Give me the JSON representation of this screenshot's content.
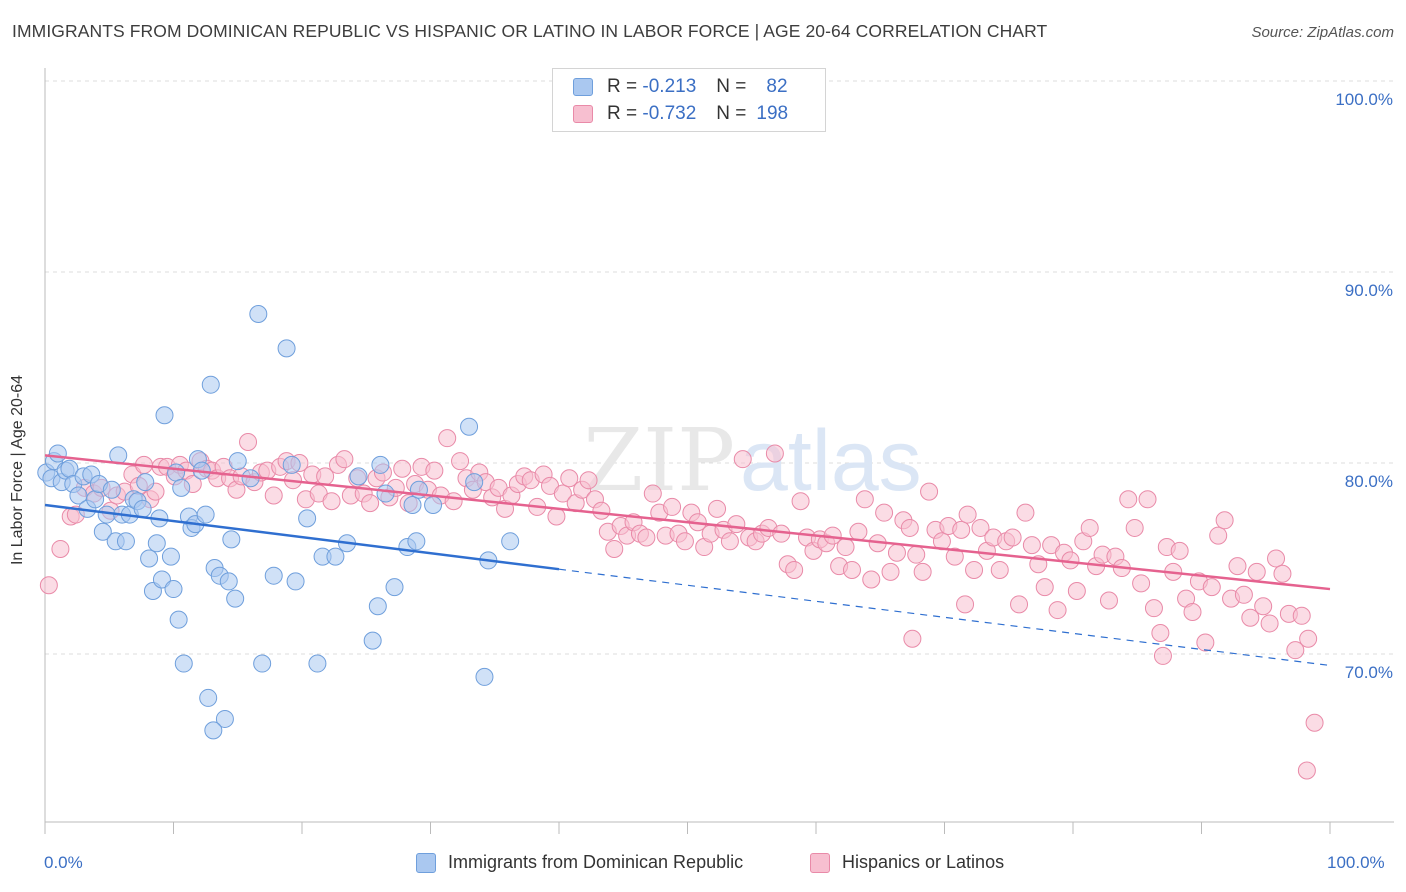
{
  "header": {
    "title": "IMMIGRANTS FROM DOMINICAN REPUBLIC VS HISPANIC OR LATINO IN LABOR FORCE | AGE 20-64 CORRELATION CHART",
    "source": "Source: ZipAtlas.com"
  },
  "watermark": "ZIPatlas",
  "legend": {
    "rows": [
      {
        "r_label": "R =",
        "r_value": "-0.213",
        "n_label": "N =",
        "n_value": "82"
      },
      {
        "r_label": "R =",
        "r_value": "-0.732",
        "n_label": "N =",
        "n_value": "198"
      }
    ]
  },
  "bottom_legend": {
    "series1": "Immigrants from Dominican Republic",
    "series2": "Hispanics or Latinos"
  },
  "axes": {
    "ylabel": "In Labor Force | Age 20-64",
    "x_min_label": "0.0%",
    "x_max_label": "100.0%",
    "y_tick_labels": [
      "100.0%",
      "90.0%",
      "80.0%",
      "70.0%"
    ]
  },
  "colors": {
    "blue_fill": "#aac8f0",
    "blue_stroke": "#6f9fdc",
    "blue_line": "#2f6fd0",
    "pink_fill": "#f7bfd0",
    "pink_stroke": "#e98aa8",
    "pink_line": "#e5628f",
    "tick_text": "#3b6fc4"
  },
  "chart_data": {
    "type": "scatter",
    "title": "IMMIGRANTS FROM DOMINICAN REPUBLIC VS HISPANIC OR LATINO IN LABOR FORCE | AGE 20-64 CORRELATION CHART",
    "xlabel": "",
    "ylabel": "In Labor Force | Age 20-64",
    "xlim": [
      0,
      100
    ],
    "ylim": [
      61,
      101.5
    ],
    "y_ticks": [
      70,
      80,
      90,
      100
    ],
    "grid": "horizontal dashed",
    "legend_position": "top-center",
    "series": [
      {
        "name": "Immigrants from Dominican Republic",
        "r": -0.213,
        "n": 82,
        "trend": {
          "x0": 0,
          "y0": 77.8,
          "x1": 100,
          "y1": 69.4,
          "solid_until_x": 40
        },
        "points": [
          [
            0.1,
            79.5
          ],
          [
            0.5,
            79.2
          ],
          [
            0.7,
            80.1
          ],
          [
            1.0,
            80.5
          ],
          [
            1.3,
            79.0
          ],
          [
            1.6,
            79.6
          ],
          [
            1.9,
            79.7
          ],
          [
            2.2,
            78.9
          ],
          [
            2.6,
            78.3
          ],
          [
            3.0,
            79.3
          ],
          [
            3.3,
            77.6
          ],
          [
            3.6,
            79.4
          ],
          [
            3.9,
            78.1
          ],
          [
            4.2,
            78.9
          ],
          [
            4.5,
            76.4
          ],
          [
            4.8,
            77.3
          ],
          [
            5.2,
            78.6
          ],
          [
            5.5,
            75.9
          ],
          [
            5.7,
            80.4
          ],
          [
            6.0,
            77.3
          ],
          [
            6.3,
            75.9
          ],
          [
            6.6,
            77.3
          ],
          [
            6.9,
            78.1
          ],
          [
            7.2,
            78.0
          ],
          [
            7.6,
            77.6
          ],
          [
            7.8,
            79.0
          ],
          [
            8.1,
            75.0
          ],
          [
            8.4,
            73.3
          ],
          [
            8.7,
            75.8
          ],
          [
            8.9,
            77.1
          ],
          [
            9.1,
            73.9
          ],
          [
            9.3,
            82.5
          ],
          [
            9.8,
            75.1
          ],
          [
            10.0,
            73.4
          ],
          [
            10.2,
            79.5
          ],
          [
            10.4,
            71.8
          ],
          [
            10.6,
            78.7
          ],
          [
            10.8,
            69.5
          ],
          [
            11.2,
            77.2
          ],
          [
            11.4,
            76.6
          ],
          [
            11.7,
            76.8
          ],
          [
            11.9,
            80.2
          ],
          [
            12.2,
            79.6
          ],
          [
            12.5,
            77.3
          ],
          [
            12.7,
            67.7
          ],
          [
            12.9,
            84.1
          ],
          [
            13.2,
            74.5
          ],
          [
            13.6,
            74.1
          ],
          [
            14.0,
            66.6
          ],
          [
            14.3,
            73.8
          ],
          [
            14.5,
            76.0
          ],
          [
            14.8,
            72.9
          ],
          [
            15.0,
            80.1
          ],
          [
            16.0,
            79.2
          ],
          [
            16.6,
            87.8
          ],
          [
            16.9,
            69.5
          ],
          [
            17.8,
            74.1
          ],
          [
            18.8,
            86.0
          ],
          [
            19.2,
            79.9
          ],
          [
            19.5,
            73.8
          ],
          [
            20.4,
            77.1
          ],
          [
            21.2,
            69.5
          ],
          [
            21.6,
            75.1
          ],
          [
            22.6,
            75.1
          ],
          [
            23.5,
            75.8
          ],
          [
            24.4,
            79.3
          ],
          [
            25.5,
            70.7
          ],
          [
            25.9,
            72.5
          ],
          [
            26.1,
            79.9
          ],
          [
            27.2,
            73.5
          ],
          [
            28.2,
            75.6
          ],
          [
            28.6,
            77.8
          ],
          [
            28.9,
            75.9
          ],
          [
            29.1,
            78.6
          ],
          [
            30.2,
            77.8
          ],
          [
            33.0,
            81.9
          ],
          [
            33.4,
            79.0
          ],
          [
            34.2,
            68.8
          ],
          [
            34.5,
            74.9
          ],
          [
            36.2,
            75.9
          ],
          [
            13.1,
            66.0
          ],
          [
            26.5,
            78.4
          ]
        ]
      },
      {
        "name": "Hispanics or Latinos",
        "r": -0.732,
        "n": 198,
        "trend": {
          "x0": 0,
          "y0": 80.4,
          "x1": 100,
          "y1": 73.4
        },
        "points": [
          [
            0.3,
            73.6
          ],
          [
            1.2,
            75.5
          ],
          [
            2.0,
            77.2
          ],
          [
            2.4,
            77.3
          ],
          [
            3.1,
            78.7
          ],
          [
            3.8,
            78.4
          ],
          [
            4.4,
            78.7
          ],
          [
            5.1,
            77.5
          ],
          [
            5.6,
            78.3
          ],
          [
            6.2,
            78.5
          ],
          [
            6.8,
            79.4
          ],
          [
            7.3,
            78.8
          ],
          [
            7.7,
            79.9
          ],
          [
            8.2,
            78.1
          ],
          [
            8.6,
            78.5
          ],
          [
            9.0,
            79.8
          ],
          [
            9.5,
            79.8
          ],
          [
            10.1,
            79.3
          ],
          [
            10.5,
            79.9
          ],
          [
            11.0,
            79.6
          ],
          [
            11.5,
            78.9
          ],
          [
            12.1,
            80.1
          ],
          [
            12.6,
            79.7
          ],
          [
            13.0,
            79.6
          ],
          [
            13.4,
            79.2
          ],
          [
            13.9,
            79.8
          ],
          [
            14.4,
            79.2
          ],
          [
            14.9,
            78.6
          ],
          [
            15.3,
            79.3
          ],
          [
            15.8,
            81.1
          ],
          [
            16.3,
            79.0
          ],
          [
            16.8,
            79.5
          ],
          [
            17.3,
            79.6
          ],
          [
            17.8,
            78.3
          ],
          [
            18.3,
            79.8
          ],
          [
            18.8,
            80.1
          ],
          [
            19.3,
            79.1
          ],
          [
            19.8,
            80.0
          ],
          [
            20.3,
            78.1
          ],
          [
            20.8,
            79.4
          ],
          [
            21.3,
            78.4
          ],
          [
            21.8,
            79.3
          ],
          [
            22.3,
            78.0
          ],
          [
            22.8,
            79.9
          ],
          [
            23.3,
            80.2
          ],
          [
            23.8,
            78.3
          ],
          [
            24.3,
            79.2
          ],
          [
            24.8,
            78.4
          ],
          [
            25.3,
            77.9
          ],
          [
            25.8,
            79.2
          ],
          [
            26.3,
            79.5
          ],
          [
            26.8,
            78.2
          ],
          [
            27.3,
            78.7
          ],
          [
            27.8,
            79.7
          ],
          [
            28.3,
            77.9
          ],
          [
            28.8,
            78.9
          ],
          [
            29.3,
            79.8
          ],
          [
            29.8,
            78.6
          ],
          [
            30.3,
            79.6
          ],
          [
            30.8,
            78.3
          ],
          [
            31.3,
            81.3
          ],
          [
            31.8,
            78.0
          ],
          [
            32.3,
            80.1
          ],
          [
            32.8,
            79.2
          ],
          [
            33.3,
            78.6
          ],
          [
            33.8,
            79.5
          ],
          [
            34.3,
            79.0
          ],
          [
            34.8,
            78.2
          ],
          [
            35.3,
            78.7
          ],
          [
            35.8,
            77.6
          ],
          [
            36.3,
            78.3
          ],
          [
            36.8,
            78.9
          ],
          [
            37.3,
            79.3
          ],
          [
            37.8,
            79.1
          ],
          [
            38.3,
            77.7
          ],
          [
            38.8,
            79.4
          ],
          [
            39.3,
            78.8
          ],
          [
            39.8,
            77.2
          ],
          [
            40.3,
            78.4
          ],
          [
            40.8,
            79.2
          ],
          [
            41.3,
            77.9
          ],
          [
            41.8,
            78.6
          ],
          [
            42.3,
            79.1
          ],
          [
            42.8,
            78.1
          ],
          [
            43.3,
            77.5
          ],
          [
            43.8,
            76.4
          ],
          [
            44.3,
            75.5
          ],
          [
            44.8,
            76.7
          ],
          [
            45.3,
            76.2
          ],
          [
            45.8,
            76.9
          ],
          [
            46.3,
            76.3
          ],
          [
            46.8,
            76.1
          ],
          [
            47.3,
            78.4
          ],
          [
            47.8,
            77.4
          ],
          [
            48.3,
            76.2
          ],
          [
            48.8,
            77.7
          ],
          [
            49.3,
            76.3
          ],
          [
            49.8,
            75.9
          ],
          [
            50.3,
            77.4
          ],
          [
            50.8,
            76.9
          ],
          [
            51.3,
            75.6
          ],
          [
            51.8,
            76.3
          ],
          [
            52.3,
            77.6
          ],
          [
            52.8,
            76.5
          ],
          [
            53.3,
            75.9
          ],
          [
            53.8,
            76.8
          ],
          [
            54.3,
            80.2
          ],
          [
            54.8,
            76.1
          ],
          [
            55.3,
            75.9
          ],
          [
            55.8,
            76.3
          ],
          [
            56.3,
            76.6
          ],
          [
            56.8,
            80.5
          ],
          [
            57.3,
            76.3
          ],
          [
            57.8,
            74.7
          ],
          [
            58.3,
            74.4
          ],
          [
            58.8,
            78.0
          ],
          [
            59.3,
            76.1
          ],
          [
            59.8,
            75.4
          ],
          [
            60.3,
            76.0
          ],
          [
            60.8,
            75.8
          ],
          [
            61.3,
            76.2
          ],
          [
            61.8,
            74.6
          ],
          [
            62.3,
            75.6
          ],
          [
            62.8,
            74.4
          ],
          [
            63.3,
            76.4
          ],
          [
            63.8,
            78.1
          ],
          [
            64.3,
            73.9
          ],
          [
            64.8,
            75.8
          ],
          [
            65.3,
            77.4
          ],
          [
            65.8,
            74.3
          ],
          [
            66.3,
            75.3
          ],
          [
            66.8,
            77.0
          ],
          [
            67.3,
            76.6
          ],
          [
            67.8,
            75.2
          ],
          [
            68.3,
            74.3
          ],
          [
            68.8,
            78.5
          ],
          [
            69.3,
            76.5
          ],
          [
            69.8,
            75.9
          ],
          [
            70.3,
            76.7
          ],
          [
            70.8,
            75.1
          ],
          [
            71.3,
            76.5
          ],
          [
            71.8,
            77.3
          ],
          [
            72.3,
            74.4
          ],
          [
            72.8,
            76.6
          ],
          [
            73.3,
            75.4
          ],
          [
            73.8,
            76.1
          ],
          [
            74.3,
            74.4
          ],
          [
            74.8,
            75.9
          ],
          [
            75.3,
            76.1
          ],
          [
            75.8,
            72.6
          ],
          [
            76.3,
            77.4
          ],
          [
            76.8,
            75.7
          ],
          [
            77.3,
            74.7
          ],
          [
            77.8,
            73.5
          ],
          [
            78.3,
            75.7
          ],
          [
            78.8,
            72.3
          ],
          [
            79.3,
            75.3
          ],
          [
            79.8,
            74.9
          ],
          [
            80.3,
            73.3
          ],
          [
            80.8,
            75.9
          ],
          [
            81.3,
            76.6
          ],
          [
            81.8,
            74.6
          ],
          [
            82.3,
            75.2
          ],
          [
            82.8,
            72.8
          ],
          [
            83.3,
            75.1
          ],
          [
            83.8,
            74.5
          ],
          [
            84.3,
            78.1
          ],
          [
            84.8,
            76.6
          ],
          [
            85.3,
            73.7
          ],
          [
            85.8,
            78.1
          ],
          [
            86.3,
            72.4
          ],
          [
            86.8,
            71.1
          ],
          [
            87.3,
            75.6
          ],
          [
            87.8,
            74.3
          ],
          [
            88.3,
            75.4
          ],
          [
            88.8,
            72.9
          ],
          [
            89.3,
            72.2
          ],
          [
            89.8,
            73.8
          ],
          [
            90.3,
            70.6
          ],
          [
            90.8,
            73.5
          ],
          [
            91.3,
            76.2
          ],
          [
            91.8,
            77.0
          ],
          [
            92.3,
            72.9
          ],
          [
            92.8,
            74.6
          ],
          [
            93.3,
            73.1
          ],
          [
            93.8,
            71.9
          ],
          [
            94.3,
            74.3
          ],
          [
            94.8,
            72.5
          ],
          [
            95.3,
            71.6
          ],
          [
            95.8,
            75.0
          ],
          [
            96.3,
            74.2
          ],
          [
            96.8,
            72.1
          ],
          [
            97.3,
            70.2
          ],
          [
            97.8,
            72.0
          ],
          [
            98.3,
            70.8
          ],
          [
            98.8,
            66.4
          ],
          [
            98.2,
            63.9
          ],
          [
            71.6,
            72.6
          ],
          [
            67.5,
            70.8
          ],
          [
            87.0,
            69.9
          ]
        ]
      }
    ]
  }
}
